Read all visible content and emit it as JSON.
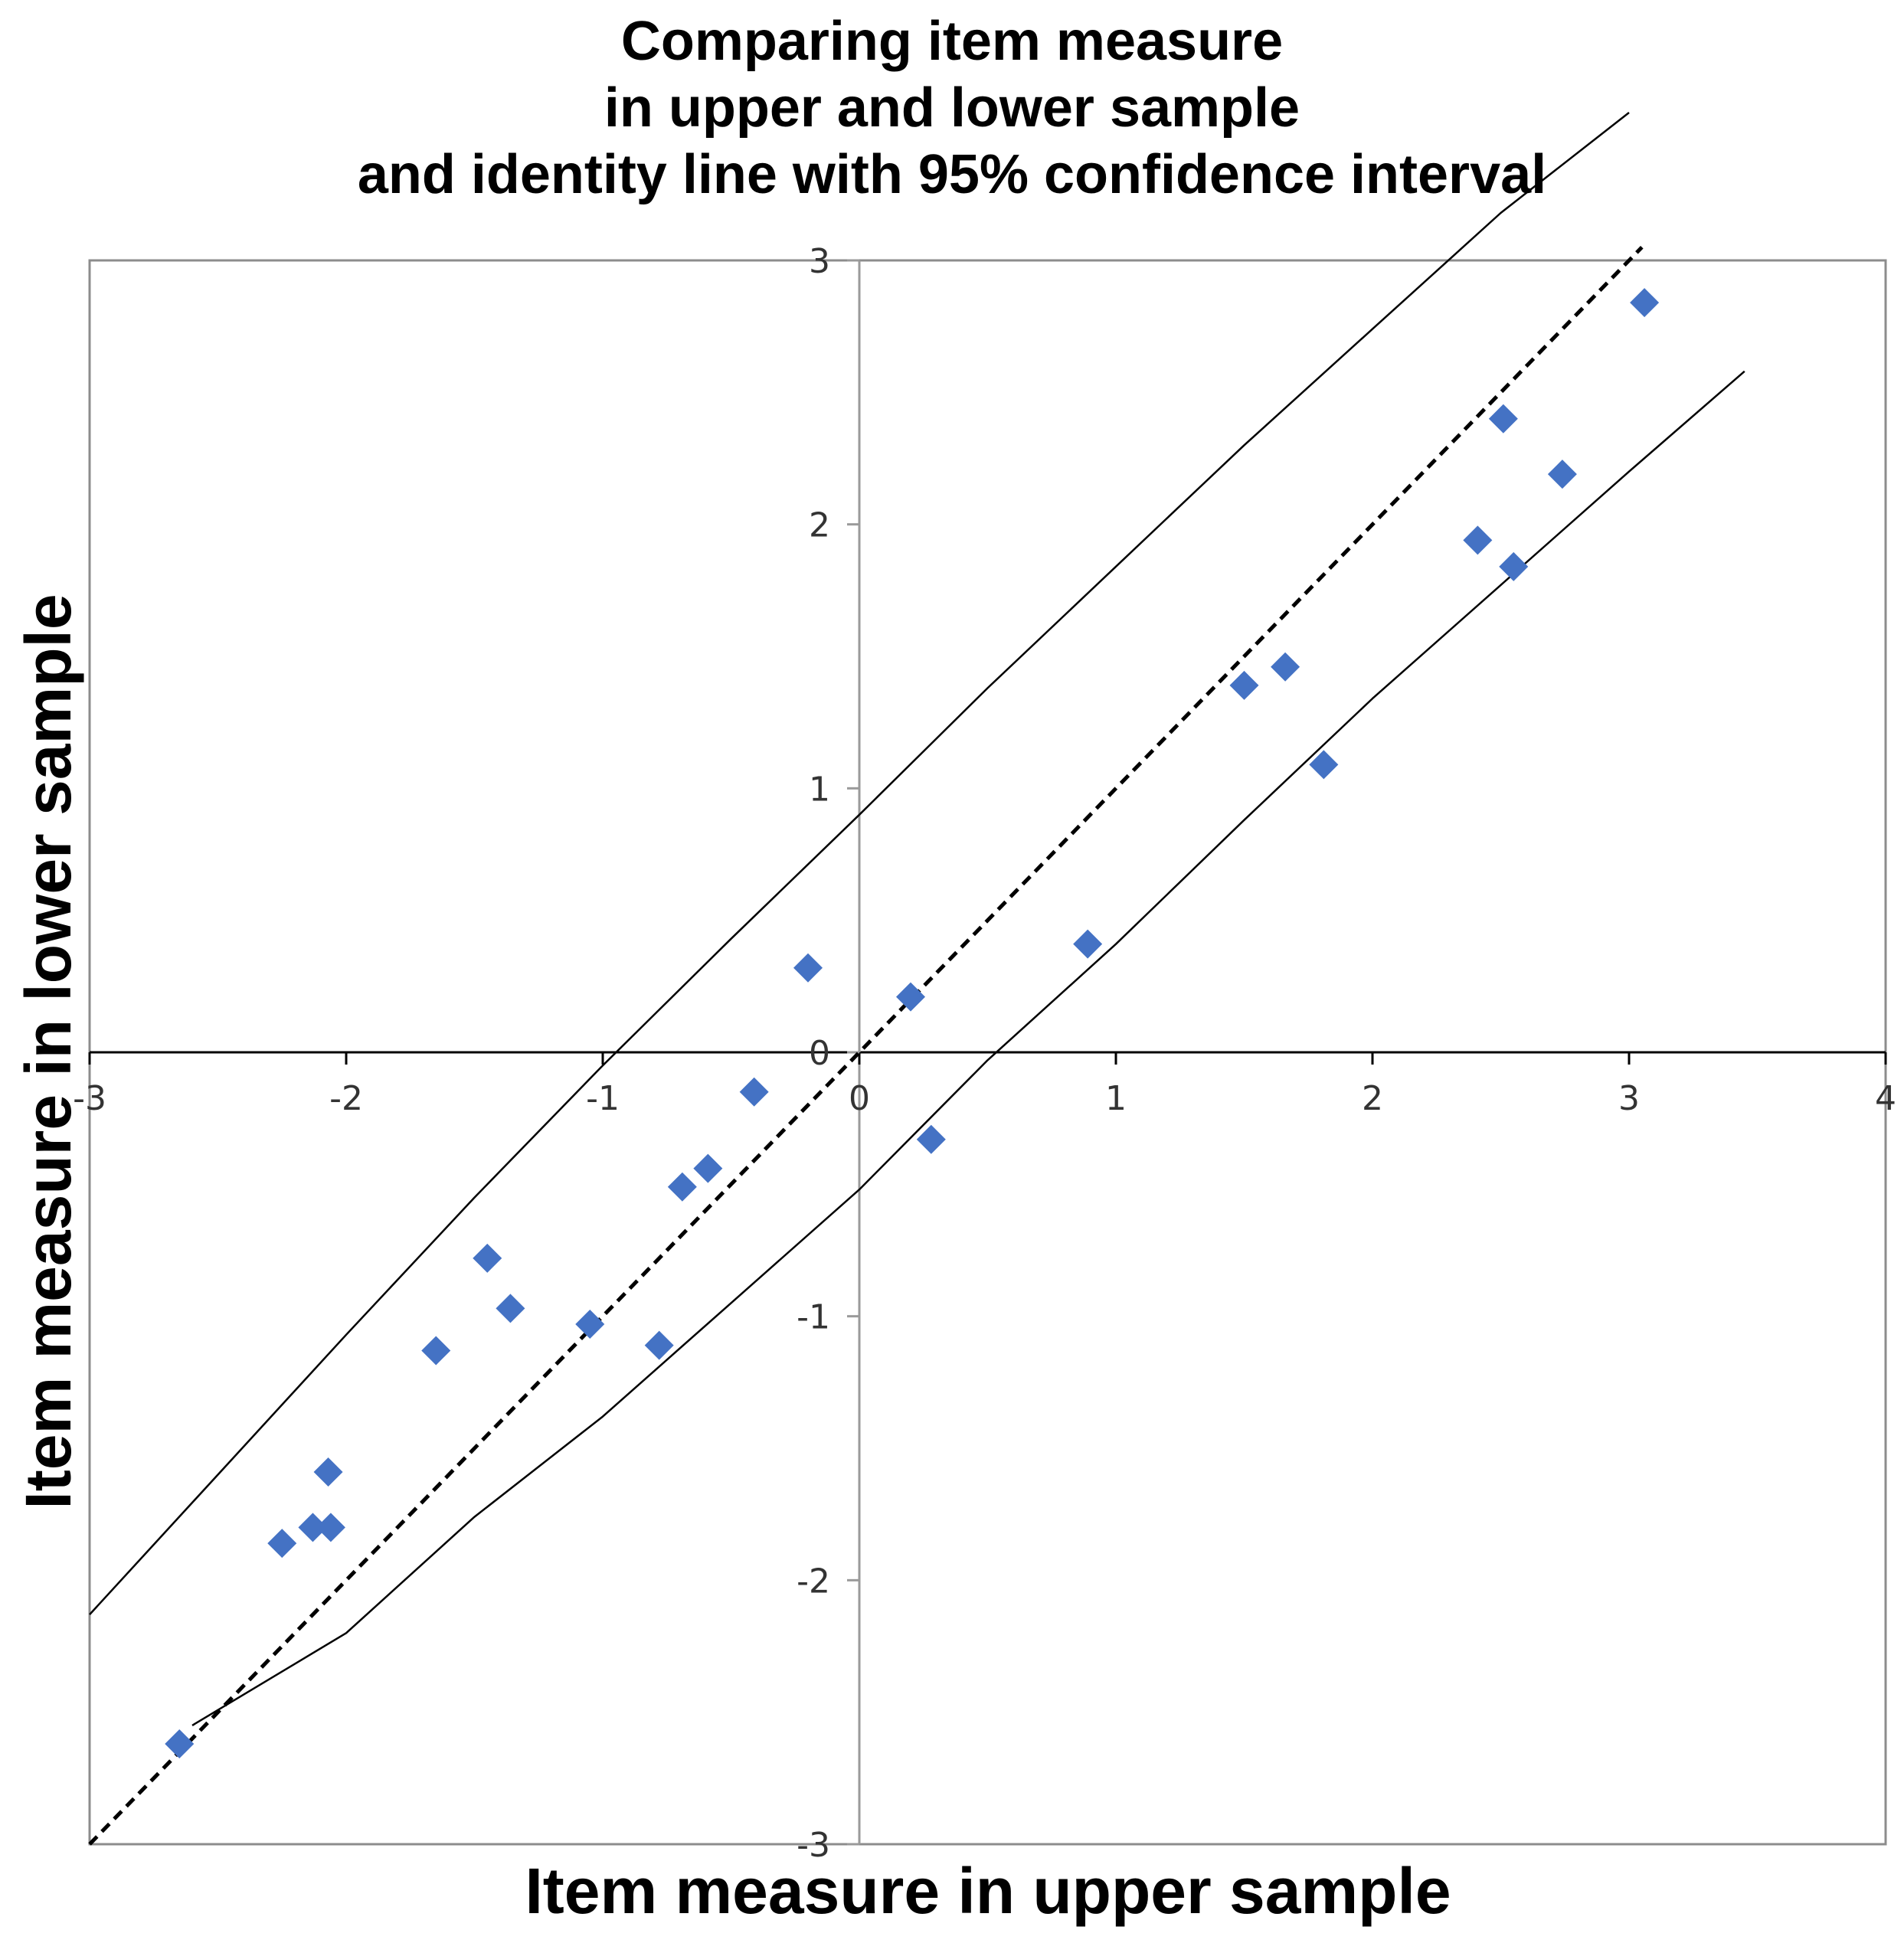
{
  "chart_data": {
    "type": "scatter",
    "title_lines": [
      "Comparing item measure",
      "in upper and lower sample",
      "and identity line with 95% confidence interval"
    ],
    "xlabel": "Item measure in upper sample",
    "ylabel": "Item measure in lower sample",
    "xlim": [
      -3,
      4
    ],
    "ylim": [
      -3,
      3
    ],
    "x_ticks": [
      "-3",
      "-2",
      "-1",
      "0",
      "1",
      "2",
      "3",
      "4"
    ],
    "y_ticks": [
      "-3",
      "-2",
      "-1",
      "0",
      "1",
      "2",
      "3"
    ],
    "grid": false,
    "legend": "none",
    "marker_color": "#4472C4",
    "line_color": "#000000",
    "series": [
      {
        "type": "scatter",
        "points": [
          [
            -2.65,
            -2.62
          ],
          [
            -2.25,
            -1.86
          ],
          [
            -2.13,
            -1.8
          ],
          [
            -2.06,
            -1.8
          ],
          [
            -2.07,
            -1.59
          ],
          [
            -1.65,
            -1.13
          ],
          [
            -1.45,
            -0.78
          ],
          [
            -1.36,
            -0.97
          ],
          [
            -1.05,
            -1.03
          ],
          [
            -0.78,
            -1.11
          ],
          [
            -0.69,
            -0.51
          ],
          [
            -0.59,
            -0.44
          ],
          [
            -0.41,
            -0.15
          ],
          [
            -0.2,
            0.32
          ],
          [
            0.2,
            0.21
          ],
          [
            0.28,
            -0.33
          ],
          [
            0.89,
            0.41
          ],
          [
            1.5,
            1.39
          ],
          [
            1.66,
            1.46
          ],
          [
            1.81,
            1.09
          ],
          [
            2.41,
            1.94
          ],
          [
            2.51,
            2.4
          ],
          [
            2.55,
            1.84
          ],
          [
            2.74,
            2.19
          ],
          [
            3.06,
            2.84
          ]
        ]
      },
      {
        "type": "line",
        "style": "dashed",
        "points": [
          [
            -3,
            -3
          ],
          [
            3.05,
            3.05
          ]
        ]
      },
      {
        "type": "line",
        "style": "solid",
        "points": [
          [
            -3,
            -2.13
          ],
          [
            -2.5,
            -1.6
          ],
          [
            -2.0,
            -1.07
          ],
          [
            -1.5,
            -0.55
          ],
          [
            -1.0,
            -0.05
          ],
          [
            -0.5,
            0.43
          ],
          [
            0.0,
            0.9
          ],
          [
            0.5,
            1.38
          ],
          [
            1.0,
            1.84
          ],
          [
            1.5,
            2.3
          ],
          [
            2.0,
            2.74
          ],
          [
            2.5,
            3.18
          ],
          [
            3.0,
            3.56
          ]
        ],
        "x_points": [
          -3,
          -2.5,
          -2,
          -1.5,
          -1,
          -0.5,
          0,
          0.5,
          1,
          1.5,
          2,
          2.5,
          3
        ],
        "y_upper": [
          -2.13,
          -1.6,
          -1.07,
          -0.55,
          -0.05,
          0.43,
          0.9,
          1.38,
          1.84,
          2.3,
          2.74,
          3.18,
          3.56
        ]
      },
      {
        "type": "line",
        "style": "solid",
        "points": [
          [
            -2.6,
            -2.55
          ],
          [
            -2.0,
            -2.2
          ],
          [
            -1.5,
            -1.76
          ],
          [
            -1.0,
            -1.38
          ],
          [
            -0.5,
            -0.95
          ],
          [
            0.0,
            -0.52
          ],
          [
            0.5,
            -0.03
          ],
          [
            1.0,
            0.41
          ],
          [
            1.5,
            0.88
          ],
          [
            2.0,
            1.34
          ],
          [
            2.5,
            1.77
          ],
          [
            3.0,
            2.2
          ],
          [
            3.45,
            2.58
          ]
        ]
      }
    ]
  }
}
